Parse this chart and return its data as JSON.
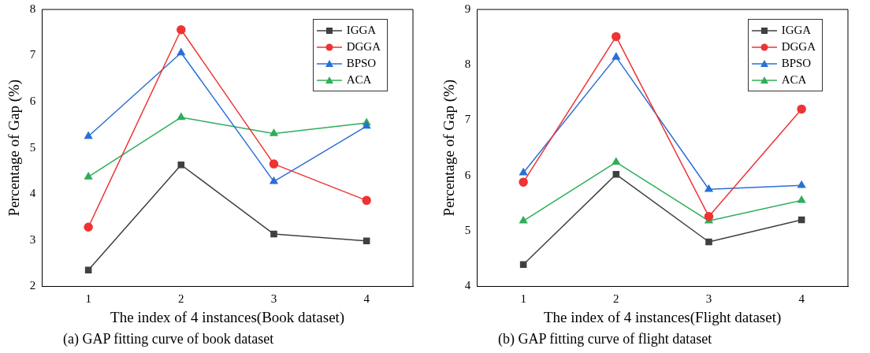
{
  "chart_data": [
    {
      "type": "line",
      "xlabel": "The index of 4 instances(Book dataset)",
      "ylabel": "Percentage of Gap (%)",
      "categories": [
        "1",
        "2",
        "3",
        "4"
      ],
      "series": [
        {
          "name": "IGGA",
          "color": "#404040",
          "marker": "square",
          "values": [
            2.35,
            4.63,
            3.13,
            2.98
          ]
        },
        {
          "name": "DGGA",
          "color": "#ee3333",
          "marker": "circle",
          "values": [
            3.28,
            7.56,
            4.65,
            3.86
          ]
        },
        {
          "name": "BPSO",
          "color": "#2b6fd6",
          "marker": "triangle",
          "values": [
            5.25,
            7.06,
            4.27,
            5.47
          ]
        },
        {
          "name": "ACA",
          "color": "#2fad5a",
          "marker": "triangle",
          "values": [
            4.37,
            5.66,
            5.31,
            5.54
          ]
        }
      ],
      "ylim": [
        2,
        8
      ],
      "yticks": [
        2,
        3,
        4,
        5,
        6,
        7,
        8
      ],
      "grid": false,
      "legend": "top right",
      "line_style": "solid",
      "annotations": [
        "(a) GAP fitting curve of book dataset"
      ]
    },
    {
      "type": "line",
      "xlabel": "The index of 4 instances(Flight dataset)",
      "ylabel": "Percentage of Gap (%)",
      "categories": [
        "1",
        "2",
        "3",
        "4"
      ],
      "series": [
        {
          "name": "IGGA",
          "color": "#404040",
          "marker": "square",
          "values": [
            4.39,
            6.02,
            4.8,
            5.2
          ]
        },
        {
          "name": "DGGA",
          "color": "#ee3333",
          "marker": "circle",
          "values": [
            5.88,
            8.51,
            5.26,
            7.2
          ]
        },
        {
          "name": "BPSO",
          "color": "#2b6fd6",
          "marker": "triangle",
          "values": [
            6.05,
            8.14,
            5.75,
            5.82
          ]
        },
        {
          "name": "ACA",
          "color": "#2fad5a",
          "marker": "triangle",
          "values": [
            5.18,
            6.24,
            5.18,
            5.55
          ]
        }
      ],
      "ylim": [
        4,
        9
      ],
      "yticks": [
        4,
        5,
        6,
        7,
        8,
        9
      ],
      "grid": false,
      "legend": "top right",
      "line_style": "solid",
      "annotations": [
        "(b) GAP fitting curve of flight dataset"
      ]
    }
  ]
}
